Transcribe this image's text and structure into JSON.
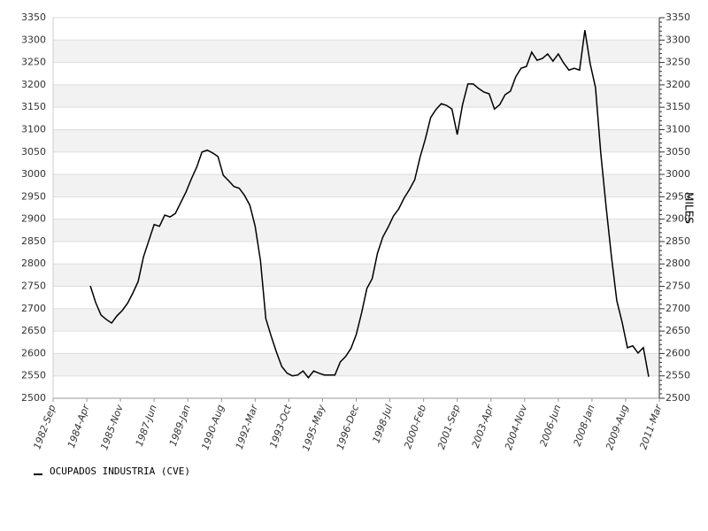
{
  "chart_data": {
    "type": "line",
    "y2_label": "MILES",
    "x": [
      "1984-06",
      "1984-09",
      "1984-12",
      "1985-03",
      "1985-06",
      "1985-09",
      "1985-12",
      "1986-03",
      "1986-06",
      "1986-09",
      "1986-12",
      "1987-03",
      "1987-06",
      "1987-09",
      "1987-12",
      "1988-03",
      "1988-06",
      "1988-09",
      "1988-12",
      "1989-03",
      "1989-06",
      "1989-09",
      "1989-12",
      "1990-03",
      "1990-06",
      "1990-09",
      "1990-12",
      "1991-03",
      "1991-06",
      "1991-09",
      "1991-12",
      "1992-03",
      "1992-06",
      "1992-09",
      "1992-12",
      "1993-03",
      "1993-06",
      "1993-09",
      "1993-12",
      "1994-03",
      "1994-06",
      "1994-09",
      "1994-12",
      "1995-03",
      "1995-06",
      "1995-09",
      "1995-12",
      "1996-03",
      "1996-06",
      "1996-09",
      "1996-12",
      "1997-03",
      "1997-06",
      "1997-09",
      "1997-12",
      "1998-03",
      "1998-06",
      "1998-09",
      "1998-12",
      "1999-03",
      "1999-06",
      "1999-09",
      "1999-12",
      "2000-03",
      "2000-06",
      "2000-09",
      "2000-12",
      "2001-03",
      "2001-06",
      "2001-09",
      "2001-12",
      "2002-03",
      "2002-06",
      "2002-09",
      "2002-12",
      "2003-03",
      "2003-06",
      "2003-09",
      "2003-12",
      "2004-03",
      "2004-06",
      "2004-09",
      "2004-12",
      "2005-03",
      "2005-06",
      "2005-09",
      "2005-12",
      "2006-03",
      "2006-06",
      "2006-09",
      "2006-12",
      "2007-03",
      "2007-06",
      "2007-09",
      "2007-12",
      "2008-03",
      "2008-06",
      "2008-09",
      "2008-12",
      "2009-03",
      "2009-06",
      "2009-09",
      "2009-12",
      "2010-03",
      "2010-06",
      "2010-09"
    ],
    "series": [
      {
        "name": "OCUPADOS INDUSTRIA (CVE)",
        "color": "#000000",
        "values": [
          2751,
          2714,
          2686,
          2676,
          2668,
          2684,
          2696,
          2712,
          2735,
          2761,
          2816,
          2852,
          2888,
          2884,
          2909,
          2905,
          2913,
          2937,
          2961,
          2990,
          3016,
          3050,
          3054,
          3048,
          3040,
          2998,
          2986,
          2973,
          2969,
          2953,
          2931,
          2884,
          2807,
          2678,
          2639,
          2603,
          2571,
          2556,
          2550,
          2552,
          2561,
          2546,
          2561,
          2556,
          2552,
          2552,
          2552,
          2581,
          2593,
          2611,
          2642,
          2690,
          2745,
          2767,
          2824,
          2860,
          2882,
          2907,
          2923,
          2947,
          2966,
          2988,
          3038,
          3079,
          3127,
          3145,
          3158,
          3154,
          3146,
          3089,
          3156,
          3202,
          3202,
          3192,
          3184,
          3180,
          3146,
          3156,
          3178,
          3186,
          3218,
          3237,
          3241,
          3273,
          3255,
          3259,
          3269,
          3253,
          3269,
          3249,
          3233,
          3237,
          3233,
          3322,
          3247,
          3194,
          3046,
          2927,
          2816,
          2718,
          2670,
          2613,
          2617,
          2601,
          2613,
          2548
        ]
      }
    ],
    "xlim": [
      "1982-09",
      "2011-03"
    ],
    "xticks": [
      {
        "value": "1982-09",
        "label": "1982-Sep"
      },
      {
        "value": "1984-04",
        "label": "1984-Apr"
      },
      {
        "value": "1985-11",
        "label": "1985-Nov"
      },
      {
        "value": "1987-06",
        "label": "1987-Jun"
      },
      {
        "value": "1989-01",
        "label": "1989-Jan"
      },
      {
        "value": "1990-08",
        "label": "1990-Aug"
      },
      {
        "value": "1992-03",
        "label": "1992-Mar"
      },
      {
        "value": "1993-10",
        "label": "1993-Oct"
      },
      {
        "value": "1995-05",
        "label": "1995-May"
      },
      {
        "value": "1996-12",
        "label": "1996-Dec"
      },
      {
        "value": "1998-07",
        "label": "1998-Jul"
      },
      {
        "value": "2000-02",
        "label": "2000-Feb"
      },
      {
        "value": "2001-09",
        "label": "2001-Sep"
      },
      {
        "value": "2003-04",
        "label": "2003-Apr"
      },
      {
        "value": "2004-11",
        "label": "2004-Nov"
      },
      {
        "value": "2006-06",
        "label": "2006-Jun"
      },
      {
        "value": "2008-01",
        "label": "2008-Jan"
      },
      {
        "value": "2009-08",
        "label": "2009-Aug"
      },
      {
        "value": "2011-03",
        "label": "2011-Mar"
      }
    ],
    "ylim": [
      2500,
      3350
    ],
    "yticks": [
      2500,
      2550,
      2600,
      2650,
      2700,
      2750,
      2800,
      2850,
      2900,
      2950,
      3000,
      3050,
      3100,
      3150,
      3200,
      3250,
      3300,
      3350
    ],
    "y2lim": [
      2500,
      3350
    ],
    "y2ticks": [
      2500,
      2550,
      2600,
      2650,
      2700,
      2750,
      2800,
      2850,
      2900,
      2950,
      3000,
      3050,
      3100,
      3150,
      3200,
      3250,
      3300,
      3350
    ],
    "grid": true
  }
}
